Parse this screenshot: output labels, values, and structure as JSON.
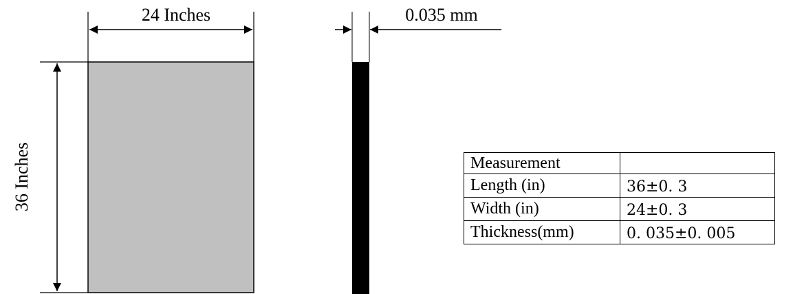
{
  "panel": {
    "width_label": "24 Inches",
    "height_label": "36 Inches",
    "fill_color": "#c0c0c0"
  },
  "film": {
    "thickness_label": "0.035 mm",
    "fill_color": "#000000"
  },
  "table": {
    "header": {
      "label": "Measurement",
      "value": ""
    },
    "rows": [
      {
        "label": "Length (in)",
        "value": "36±0. 3"
      },
      {
        "label": "Width (in)",
        "value": "24±0. 3"
      },
      {
        "label": "Thickness(mm)",
        "value": "0. 035±0. 005"
      }
    ]
  }
}
